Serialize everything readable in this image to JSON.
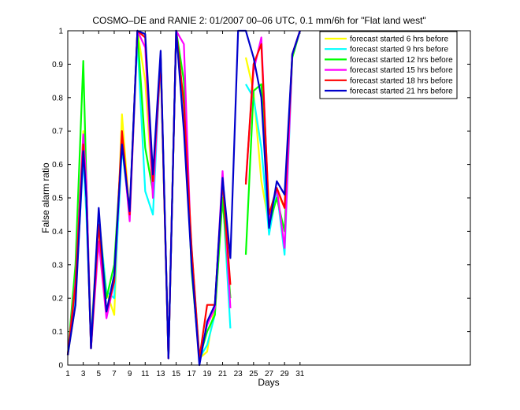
{
  "chart_data": {
    "type": "line",
    "title": "COSMO–DE and RANIE 2: 01/2007 00–06 UTC, 0.1 mm/6h for \"Flat land west\"",
    "xlabel": "Days",
    "ylabel": "False alarm ratio",
    "xlim": [
      1,
      53
    ],
    "ylim": [
      0,
      1
    ],
    "xticks": [
      1,
      3,
      5,
      7,
      9,
      11,
      13,
      15,
      17,
      19,
      21,
      23,
      25,
      27,
      29,
      31
    ],
    "yticks": [
      0,
      0.1,
      0.2,
      0.3,
      0.4,
      0.5,
      0.6,
      0.7,
      0.8,
      0.9,
      1
    ],
    "legend_position": "top-right",
    "series": [
      {
        "name": "forecast started 6 hrs before",
        "color": "#ffff00",
        "values": [
          [
            1,
            0.03
          ],
          [
            2,
            0.18
          ],
          [
            3,
            0.7
          ],
          [
            3.4,
            0.5
          ],
          [
            4,
            0.08
          ],
          [
            5,
            0.45
          ],
          [
            6,
            0.22
          ],
          [
            7,
            0.15
          ],
          [
            8,
            0.75
          ],
          [
            9,
            0.45
          ],
          [
            10,
            1.0
          ],
          [
            11,
            0.85
          ],
          [
            12,
            0.5
          ],
          [
            13,
            0.9
          ],
          [
            14,
            0.02
          ],
          [
            15,
            1.0
          ],
          [
            16,
            0.78
          ],
          [
            17,
            0.3
          ],
          [
            18,
            0.02
          ],
          [
            19,
            0.04
          ],
          [
            20,
            0.18
          ],
          [
            21,
            0.5
          ],
          [
            22,
            0.2
          ],
          null,
          [
            24,
            0.92
          ],
          [
            25,
            0.82
          ],
          [
            26,
            0.55
          ],
          [
            27,
            0.42
          ],
          [
            28,
            0.52
          ],
          [
            29,
            0.47
          ],
          [
            30,
            0.93
          ],
          [
            31,
            1.0
          ]
        ]
      },
      {
        "name": "forecast started 9 hrs before",
        "color": "#00ffff",
        "values": [
          [
            1,
            0.03
          ],
          [
            2,
            0.2
          ],
          [
            3,
            0.62
          ],
          [
            3.4,
            0.45
          ],
          [
            4,
            0.07
          ],
          [
            5,
            0.44
          ],
          [
            6,
            0.22
          ],
          [
            7,
            0.2
          ],
          [
            8,
            0.65
          ],
          [
            9,
            0.45
          ],
          [
            10,
            0.97
          ],
          [
            11,
            0.52
          ],
          [
            12,
            0.45
          ],
          [
            13,
            0.92
          ],
          [
            14,
            0.02
          ],
          [
            15,
            1.0
          ],
          [
            16,
            0.72
          ],
          [
            17,
            0.35
          ],
          [
            18,
            0.02
          ],
          [
            19,
            0.06
          ],
          [
            20,
            0.15
          ],
          [
            21,
            0.52
          ],
          [
            22,
            0.11
          ],
          null,
          [
            24,
            0.84
          ],
          [
            25,
            0.8
          ],
          [
            26,
            0.65
          ],
          [
            27,
            0.39
          ],
          [
            28,
            0.52
          ],
          [
            29,
            0.33
          ],
          [
            30,
            0.92
          ],
          [
            31,
            1.0
          ]
        ]
      },
      {
        "name": "forecast started 12 hrs before",
        "color": "#00ff00",
        "values": [
          [
            1,
            0.03
          ],
          [
            2,
            0.3
          ],
          [
            3,
            0.91
          ],
          [
            3.4,
            0.55
          ],
          [
            4,
            0.05
          ],
          [
            5,
            0.42
          ],
          [
            6,
            0.2
          ],
          [
            7,
            0.3
          ],
          [
            8,
            0.67
          ],
          [
            9,
            0.45
          ],
          [
            10,
            1.0
          ],
          [
            11,
            0.65
          ],
          [
            12,
            0.52
          ],
          [
            13,
            0.92
          ],
          [
            14,
            0.02
          ],
          [
            15,
            1.0
          ],
          [
            16,
            0.85
          ],
          [
            17,
            0.28
          ],
          [
            18,
            0.02
          ],
          [
            19,
            0.1
          ],
          [
            20,
            0.15
          ],
          [
            21,
            0.5
          ],
          [
            22,
            0.2
          ],
          null,
          [
            24,
            0.33
          ],
          [
            25,
            0.82
          ],
          [
            26,
            0.84
          ],
          [
            27,
            0.42
          ],
          [
            28,
            0.5
          ],
          [
            29,
            0.4
          ],
          [
            30,
            0.92
          ],
          [
            31,
            1.0
          ]
        ]
      },
      {
        "name": "forecast started 15 hrs before",
        "color": "#ff00ff",
        "values": [
          [
            1,
            0.03
          ],
          [
            2,
            0.25
          ],
          [
            3,
            0.69
          ],
          [
            3.4,
            0.55
          ],
          [
            4,
            0.05
          ],
          [
            5,
            0.37
          ],
          [
            6,
            0.14
          ],
          [
            7,
            0.25
          ],
          [
            8,
            0.68
          ],
          [
            9,
            0.43
          ],
          [
            10,
            1.0
          ],
          [
            11,
            0.95
          ],
          [
            12,
            0.5
          ],
          [
            13,
            0.92
          ],
          [
            14,
            0.02
          ],
          [
            15,
            1.0
          ],
          [
            16,
            0.96
          ],
          [
            17,
            0.3
          ],
          [
            18,
            0.02
          ],
          [
            19,
            0.12
          ],
          [
            20,
            0.17
          ],
          [
            21,
            0.58
          ],
          [
            22,
            0.17
          ],
          null,
          [
            24,
            0.55
          ],
          [
            25,
            0.88
          ],
          [
            26,
            0.98
          ],
          [
            27,
            0.44
          ],
          [
            28,
            0.53
          ],
          [
            29,
            0.35
          ],
          [
            30,
            0.93
          ],
          [
            31,
            1.0
          ]
        ]
      },
      {
        "name": "forecast started 18 hrs before",
        "color": "#ff0000",
        "values": [
          [
            1,
            0.03
          ],
          [
            2,
            0.24
          ],
          [
            3,
            0.66
          ],
          [
            3.4,
            0.5
          ],
          [
            4,
            0.05
          ],
          [
            5,
            0.42
          ],
          [
            6,
            0.16
          ],
          [
            7,
            0.25
          ],
          [
            8,
            0.7
          ],
          [
            9,
            0.45
          ],
          [
            10,
            1.0
          ],
          [
            11,
            0.98
          ],
          [
            12,
            0.55
          ],
          [
            13,
            0.92
          ],
          [
            14,
            0.02
          ],
          [
            15,
            1.0
          ],
          [
            16,
            0.78
          ],
          [
            17,
            0.35
          ],
          [
            18,
            0.02
          ],
          [
            19,
            0.18
          ],
          [
            20,
            0.18
          ],
          [
            21,
            0.55
          ],
          [
            22,
            0.24
          ],
          null,
          [
            24,
            0.54
          ],
          [
            25,
            0.9
          ],
          [
            26,
            0.96
          ],
          [
            27,
            0.45
          ],
          [
            28,
            0.53
          ],
          [
            29,
            0.47
          ],
          [
            30,
            0.93
          ],
          [
            31,
            1.0
          ]
        ]
      },
      {
        "name": "forecast started 21 hrs before",
        "color": "#0000cc",
        "values": [
          [
            1,
            0.03
          ],
          [
            2,
            0.18
          ],
          [
            3,
            0.64
          ],
          [
            3.4,
            0.5
          ],
          [
            4,
            0.05
          ],
          [
            5,
            0.47
          ],
          [
            6,
            0.16
          ],
          [
            7,
            0.27
          ],
          [
            8,
            0.66
          ],
          [
            9,
            0.46
          ],
          [
            10,
            1.0
          ],
          [
            11,
            0.99
          ],
          [
            12,
            0.57
          ],
          [
            13,
            0.94
          ],
          [
            14,
            0.02
          ],
          [
            15,
            1.0
          ],
          [
            16,
            0.7
          ],
          [
            17,
            0.3
          ],
          [
            18,
            0.0
          ],
          [
            19,
            0.13
          ],
          [
            20,
            0.18
          ],
          [
            21,
            0.56
          ],
          [
            22,
            0.32
          ],
          [
            23,
            1.0
          ],
          [
            24,
            1.0
          ],
          [
            25,
            0.92
          ],
          [
            26,
            0.8
          ],
          [
            27,
            0.41
          ],
          [
            28,
            0.55
          ],
          [
            29,
            0.51
          ],
          [
            30,
            0.93
          ],
          [
            31,
            1.0
          ]
        ]
      }
    ]
  }
}
